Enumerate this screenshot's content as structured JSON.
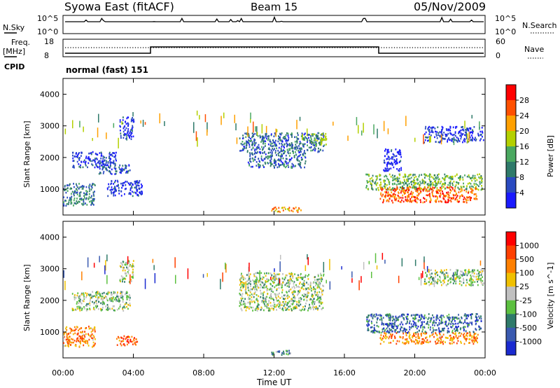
{
  "header": {
    "title": "Syowa East (fitACF)",
    "beam": "Beam 15",
    "date": "05/Nov/2009"
  },
  "status": {
    "nsky_label": "N.Sky",
    "nsearch_label": "N.Search",
    "freq_label": "Freq.",
    "freq_unit": "[MHz]",
    "nave_label": "Nave",
    "cpid_label": "CPID",
    "cpid_value": "normal (fast) 151",
    "noise_ticks_left": [
      "10^5",
      "10^0"
    ],
    "noise_ticks_right": [
      "10^5",
      "10^0"
    ],
    "freq_ticks": [
      "18",
      "8"
    ],
    "nave_ticks": [
      "60",
      "0"
    ]
  },
  "axes": {
    "xlabel": "Time UT",
    "ylabel": "Slant Range [km]",
    "x_ticks": [
      "00:00",
      "04:00",
      "08:00",
      "12:00",
      "16:00",
      "20:00",
      "00:00"
    ],
    "y_ticks": [
      "4000",
      "3000",
      "2000",
      "1000"
    ]
  },
  "chart_data": [
    {
      "type": "heatmap",
      "title": "",
      "xlabel": "Time UT",
      "ylabel": "Slant Range [km]",
      "xlim": [
        0,
        24
      ],
      "ylim": [
        180,
        4500
      ],
      "colorbar": {
        "label": "Power [dB]",
        "ticks": [
          "28",
          "24",
          "20",
          "16",
          "12",
          "8",
          "4"
        ],
        "colors": [
          "#1a1aff",
          "#2a4ac0",
          "#2f7a6a",
          "#4aa860",
          "#b4d000",
          "#ffa000",
          "#ff5000",
          "#ff0000"
        ]
      },
      "regions": [
        {
          "t": [
            0.0,
            1.8
          ],
          "r": [
            500,
            1200
          ],
          "level": 0.3
        },
        {
          "t": [
            0.5,
            3.0
          ],
          "r": [
            1700,
            2200
          ],
          "level": 0.15
        },
        {
          "t": [
            2.0,
            3.8
          ],
          "r": [
            1500,
            1800
          ],
          "level": 0.2
        },
        {
          "t": [
            3.2,
            4.0
          ],
          "r": [
            2600,
            3300
          ],
          "level": 0.1
        },
        {
          "t": [
            2.5,
            4.5
          ],
          "r": [
            800,
            1300
          ],
          "level": 0.1
        },
        {
          "t": [
            10.0,
            14.8
          ],
          "r": [
            2200,
            2800
          ],
          "level": 0.25
        },
        {
          "t": [
            10.5,
            13.8
          ],
          "r": [
            1700,
            2200
          ],
          "level": 0.25
        },
        {
          "t": [
            11.8,
            13.5
          ],
          "r": [
            300,
            450
          ],
          "level": 0.7
        },
        {
          "t": [
            14.0,
            15.0
          ],
          "r": [
            2400,
            2800
          ],
          "level": 0.45
        },
        {
          "t": [
            17.2,
            23.8
          ],
          "r": [
            1000,
            1500
          ],
          "level": 0.45
        },
        {
          "t": [
            18.0,
            23.5
          ],
          "r": [
            600,
            1100
          ],
          "level": 0.8
        },
        {
          "t": [
            20.5,
            23.9
          ],
          "r": [
            2500,
            3000
          ],
          "level": 0.12
        },
        {
          "t": [
            18.2,
            19.2
          ],
          "r": [
            1600,
            2300
          ],
          "level": 0.1
        }
      ]
    },
    {
      "type": "heatmap",
      "title": "",
      "xlabel": "Time UT",
      "ylabel": "Slant Range [km]",
      "xlim": [
        0,
        24
      ],
      "ylim": [
        180,
        4500
      ],
      "colorbar": {
        "label": "Velocity [m s^-1]",
        "ticks": [
          "1000",
          "500",
          "100",
          "25",
          "-25",
          "-100",
          "-500",
          "-1000"
        ],
        "colors": [
          "#1a2ad0",
          "#3a5ab0",
          "#2f7a6a",
          "#5cc040",
          "#c0c0c0",
          "#f0c000",
          "#ff8000",
          "#ff4000",
          "#ff0000"
        ]
      },
      "regions": [
        {
          "t": [
            0.0,
            1.8
          ],
          "r": [
            550,
            1200
          ],
          "level": 0.7
        },
        {
          "t": [
            0.5,
            3.8
          ],
          "r": [
            1700,
            2300
          ],
          "level": 0.45
        },
        {
          "t": [
            3.0,
            4.2
          ],
          "r": [
            600,
            900
          ],
          "level": 0.8
        },
        {
          "t": [
            3.2,
            4.0
          ],
          "r": [
            2600,
            3300
          ],
          "level": 0.45
        },
        {
          "t": [
            10.0,
            14.8
          ],
          "r": [
            1700,
            2900
          ],
          "level": 0.45
        },
        {
          "t": [
            11.8,
            13.0
          ],
          "r": [
            280,
            450
          ],
          "level": 0.32
        },
        {
          "t": [
            17.2,
            23.8
          ],
          "r": [
            1000,
            1600
          ],
          "level": 0.2
        },
        {
          "t": [
            18.0,
            23.6
          ],
          "r": [
            650,
            1000
          ],
          "level": 0.72
        },
        {
          "t": [
            20.5,
            23.9
          ],
          "r": [
            2500,
            3000
          ],
          "level": 0.45
        }
      ]
    }
  ]
}
